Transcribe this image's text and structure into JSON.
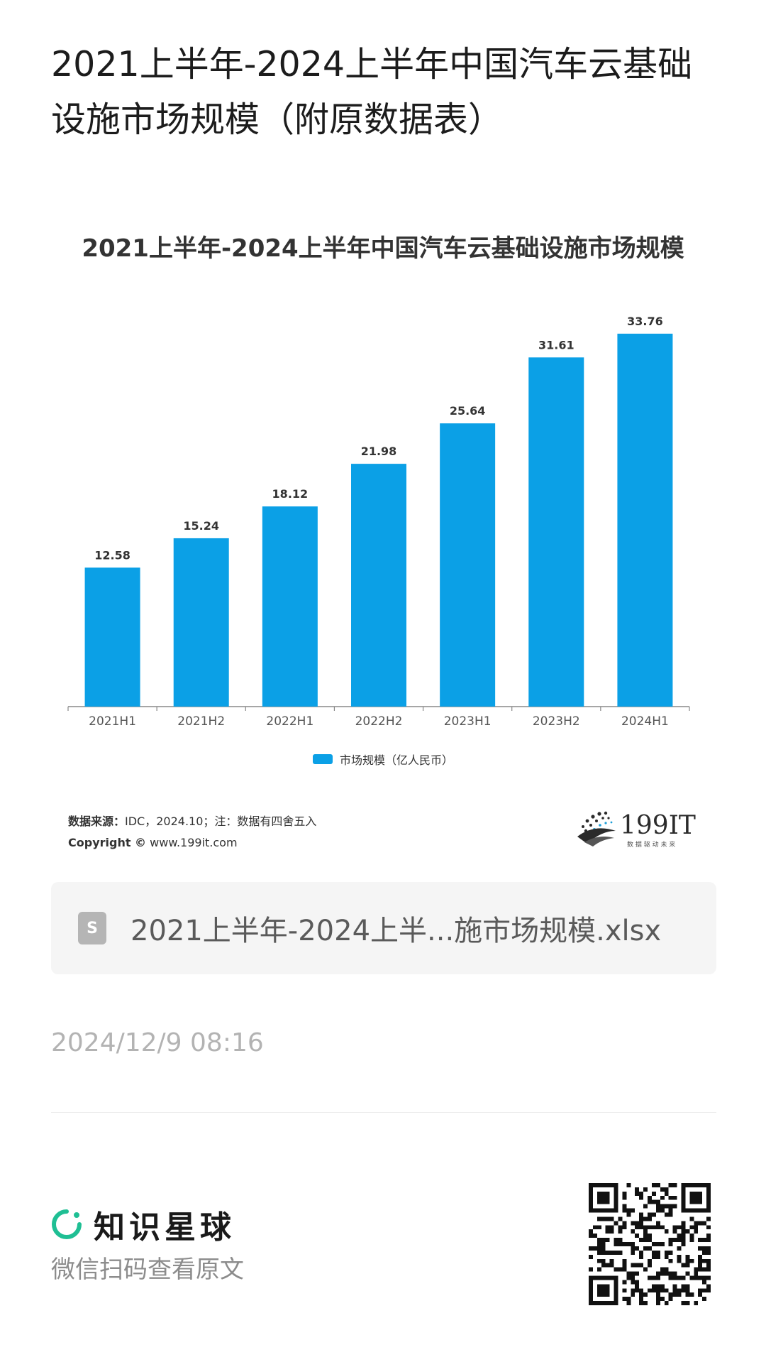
{
  "page": {
    "title": "2021上半年-2024上半年中国汽车云基础设施市场规模（附原数据表）"
  },
  "chart_data": {
    "type": "bar",
    "title": "2021上半年-2024上半年中国汽车云基础设施市场规模",
    "categories": [
      "2021H1",
      "2021H2",
      "2022H1",
      "2022H2",
      "2023H1",
      "2023H2",
      "2024H1"
    ],
    "series": [
      {
        "name": "市场规模（亿人民币）",
        "values": [
          12.58,
          15.24,
          18.12,
          21.98,
          25.64,
          31.61,
          33.76
        ]
      }
    ],
    "data_labels": [
      "12.58",
      "15.24",
      "18.12",
      "21.98",
      "25.64",
      "31.61",
      "33.76"
    ],
    "ylim": [
      0,
      35
    ],
    "grid": false,
    "legend_position": "bottom-center",
    "bar_color": "#0ba0e6"
  },
  "source": {
    "label": "数据来源：",
    "text": "IDC，2024.10；注：数据有四舍五入",
    "copyright_label": "Copyright ©",
    "copyright_url": "www.199it.com"
  },
  "logo": {
    "name": "199IT",
    "tagline": "数 据 驱 动 未 来"
  },
  "attachment": {
    "icon_letter": "S",
    "filename": "2021上半年-2024上半...施市场规模.xlsx"
  },
  "timestamp": "2024/12/9 08:16",
  "footer": {
    "brand": "知识星球",
    "subtitle": "微信扫码查看原文",
    "brand_color": "#1fbf94"
  }
}
